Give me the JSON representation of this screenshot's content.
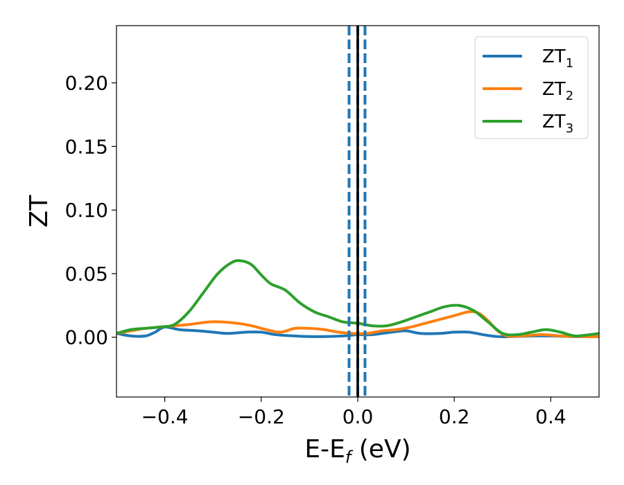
{
  "chart_data": {
    "type": "line",
    "xlabel": "E-E",
    "xlabel_sub": "f",
    "xlabel_unit": " (eV)",
    "ylabel": "ZT",
    "xlim": [
      -0.5,
      0.5
    ],
    "ylim": [
      -0.047,
      0.245
    ],
    "xticks": [
      -0.4,
      -0.2,
      0.0,
      0.2,
      0.4
    ],
    "xtick_labels": [
      "−0.4",
      "−0.2",
      "0.0",
      "0.2",
      "0.4"
    ],
    "yticks": [
      0.0,
      0.05,
      0.1,
      0.15,
      0.2
    ],
    "ytick_labels": [
      "0.00",
      "0.05",
      "0.10",
      "0.15",
      "0.20"
    ],
    "grid": false,
    "legend_position": "top-right",
    "vlines": [
      {
        "x": -0.018,
        "style": "dashed",
        "color": "#1f77b4"
      },
      {
        "x": 0.0,
        "style": "dashed",
        "color": "#1f77b4"
      },
      {
        "x": 0.015,
        "style": "dashed",
        "color": "#1f77b4"
      },
      {
        "x": 0.0,
        "style": "solid",
        "color": "#000000"
      }
    ],
    "series": [
      {
        "name": "ZT",
        "name_sub": "1",
        "color": "#1f77b4",
        "x": [
          -0.5,
          -0.47,
          -0.44,
          -0.42,
          -0.4,
          -0.37,
          -0.33,
          -0.3,
          -0.27,
          -0.23,
          -0.2,
          -0.17,
          -0.13,
          -0.1,
          -0.07,
          -0.03,
          0.0,
          0.03,
          0.07,
          0.1,
          0.13,
          0.17,
          0.2,
          0.23,
          0.26,
          0.29,
          0.32,
          0.36,
          0.4,
          0.45,
          0.5
        ],
        "values": [
          0.003,
          0.001,
          0.001,
          0.004,
          0.008,
          0.006,
          0.005,
          0.004,
          0.003,
          0.004,
          0.004,
          0.002,
          0.001,
          0.0005,
          0.0005,
          0.001,
          0.002,
          0.002,
          0.004,
          0.005,
          0.003,
          0.003,
          0.004,
          0.004,
          0.002,
          0.0005,
          0.0005,
          0.001,
          0.001,
          0.0005,
          0.0005
        ]
      },
      {
        "name": "ZT",
        "name_sub": "2",
        "color": "#ff7f0e",
        "x": [
          -0.5,
          -0.47,
          -0.44,
          -0.41,
          -0.38,
          -0.35,
          -0.31,
          -0.28,
          -0.25,
          -0.22,
          -0.19,
          -0.16,
          -0.13,
          -0.1,
          -0.07,
          -0.04,
          -0.01,
          0.02,
          0.05,
          0.08,
          0.11,
          0.14,
          0.17,
          0.2,
          0.23,
          0.25,
          0.27,
          0.29,
          0.31,
          0.34,
          0.38,
          0.42,
          0.46,
          0.5
        ],
        "values": [
          0.003,
          0.005,
          0.007,
          0.008,
          0.009,
          0.01,
          0.012,
          0.012,
          0.011,
          0.009,
          0.006,
          0.004,
          0.007,
          0.007,
          0.006,
          0.004,
          0.003,
          0.003,
          0.005,
          0.006,
          0.008,
          0.011,
          0.014,
          0.017,
          0.02,
          0.019,
          0.013,
          0.005,
          0.001,
          0.001,
          0.002,
          0.001,
          0.0005,
          0.0005
        ]
      },
      {
        "name": "ZT",
        "name_sub": "3",
        "color": "#2ca02c",
        "x": [
          -0.5,
          -0.47,
          -0.44,
          -0.41,
          -0.38,
          -0.35,
          -0.32,
          -0.29,
          -0.26,
          -0.24,
          -0.22,
          -0.2,
          -0.18,
          -0.15,
          -0.12,
          -0.09,
          -0.06,
          -0.03,
          0.0,
          0.03,
          0.06,
          0.09,
          0.12,
          0.15,
          0.18,
          0.21,
          0.24,
          0.27,
          0.3,
          0.33,
          0.36,
          0.39,
          0.42,
          0.45,
          0.48,
          0.5
        ],
        "values": [
          0.003,
          0.006,
          0.007,
          0.008,
          0.01,
          0.02,
          0.035,
          0.05,
          0.059,
          0.06,
          0.057,
          0.049,
          0.042,
          0.037,
          0.027,
          0.02,
          0.016,
          0.012,
          0.011,
          0.009,
          0.009,
          0.012,
          0.016,
          0.02,
          0.024,
          0.025,
          0.021,
          0.012,
          0.003,
          0.002,
          0.004,
          0.006,
          0.004,
          0.001,
          0.002,
          0.003
        ]
      }
    ]
  }
}
